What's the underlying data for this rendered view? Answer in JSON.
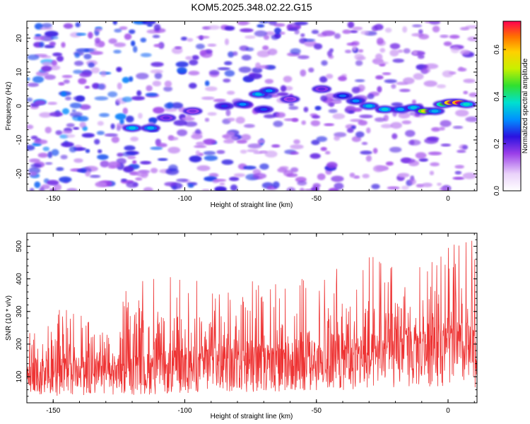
{
  "chart_data": [
    {
      "type": "heatmap",
      "title": "KOM5.2025.348.02.22.G15",
      "xlabel": "Height of straight line (km)",
      "ylabel": "Frequency (Hz)",
      "xlim": [
        -160,
        11
      ],
      "ylim": [
        -25,
        25
      ],
      "x_ticks": [
        -150,
        -100,
        -50,
        0
      ],
      "y_ticks": [
        -20,
        -10,
        0,
        10,
        20
      ],
      "colorbar": {
        "label": "Normalized spectral amplitude",
        "range": [
          0.0,
          0.72
        ],
        "ticks": [
          0.0,
          0.2,
          0.4,
          0.6
        ],
        "tick_labels": [
          "0.0",
          "0.2",
          "0.4",
          "0.6"
        ]
      },
      "ridge": [
        {
          "x": -120,
          "y": -6.5,
          "amp": 0.35
        },
        {
          "x": -113,
          "y": -6.5,
          "amp": 0.33
        },
        {
          "x": -107,
          "y": -3.5,
          "amp": 0.2
        },
        {
          "x": -97,
          "y": -1.5,
          "amp": 0.18
        },
        {
          "x": -85,
          "y": 0,
          "amp": 0.25
        },
        {
          "x": -78,
          "y": 0.5,
          "amp": 0.3
        },
        {
          "x": -72,
          "y": 3.5,
          "amp": 0.34
        },
        {
          "x": -68,
          "y": 4.5,
          "amp": 0.3
        },
        {
          "x": -70,
          "y": -1,
          "amp": 0.26
        },
        {
          "x": -60,
          "y": 2,
          "amp": 0.18
        },
        {
          "x": -48,
          "y": 5,
          "amp": 0.2
        },
        {
          "x": -40,
          "y": 3,
          "amp": 0.28
        },
        {
          "x": -35,
          "y": 1.5,
          "amp": 0.3
        },
        {
          "x": -30,
          "y": 0,
          "amp": 0.34
        },
        {
          "x": -24,
          "y": -1,
          "amp": 0.36
        },
        {
          "x": -18,
          "y": -1,
          "amp": 0.32
        },
        {
          "x": -13,
          "y": -0.5,
          "amp": 0.35
        },
        {
          "x": -9,
          "y": -1.5,
          "amp": 0.55
        },
        {
          "x": -5,
          "y": -1.5,
          "amp": 0.33
        },
        {
          "x": -2,
          "y": 0.5,
          "amp": 0.45
        },
        {
          "x": 1,
          "y": 1,
          "amp": 0.68
        },
        {
          "x": 4,
          "y": 1,
          "amp": 0.72
        },
        {
          "x": 7,
          "y": 0.5,
          "amp": 0.38
        }
      ]
    },
    {
      "type": "line",
      "xlabel": "Height of straight line (km)",
      "ylabel": "SNR (10 * v/v)",
      "xlim": [
        -160,
        11
      ],
      "ylim": [
        20,
        540
      ],
      "x_ticks": [
        -150,
        -100,
        -50,
        0
      ],
      "y_ticks": [
        100,
        200,
        300,
        400,
        500
      ],
      "series": [
        {
          "name": "SNR",
          "color": "#ee3333",
          "envelope": [
            {
              "x": -160,
              "base": 115,
              "max": 290
            },
            {
              "x": -135,
              "base": 120,
              "max": 320
            },
            {
              "x": -115,
              "base": 125,
              "max": 405
            },
            {
              "x": -110,
              "base": 130,
              "max": 410
            },
            {
              "x": -90,
              "base": 150,
              "max": 405
            },
            {
              "x": -70,
              "base": 150,
              "max": 400
            },
            {
              "x": -45,
              "base": 160,
              "max": 440
            },
            {
              "x": -32,
              "base": 170,
              "max": 480
            },
            {
              "x": -20,
              "base": 185,
              "max": 450
            },
            {
              "x": -6,
              "base": 200,
              "max": 490
            },
            {
              "x": 8,
              "base": 200,
              "max": 540
            },
            {
              "x": 11,
              "base": 180,
              "max": 480
            }
          ]
        }
      ]
    }
  ]
}
